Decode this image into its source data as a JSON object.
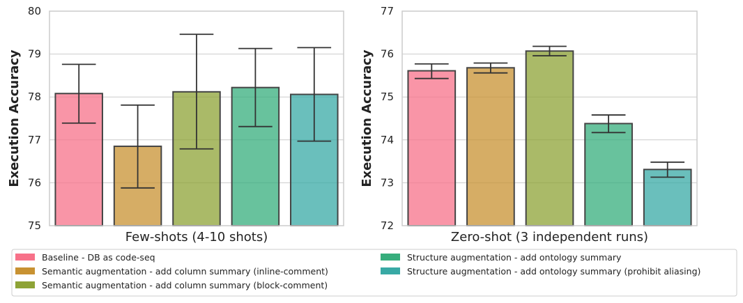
{
  "legend": [
    {
      "label": "Baseline - DB as code-seq",
      "color": "#f77189"
    },
    {
      "label": "Semantic augmentation - add column summary (inline-comment)",
      "color": "#c89232"
    },
    {
      "label": "Semantic augmentation - add column summary (block-comment)",
      "color": "#8ea336"
    },
    {
      "label": "Structure augmentation - add ontology summary",
      "color": "#36ad7c"
    },
    {
      "label": "Structure augmentation - add ontology summary (prohibit aliasing)",
      "color": "#38a9a5"
    }
  ],
  "chart_data": [
    {
      "type": "bar",
      "xlabel": "Few-shots (4-10 shots)",
      "ylabel": "Execution Accuracy",
      "ylim": [
        75,
        80
      ],
      "yticks": [
        75,
        76,
        77,
        78,
        79,
        80
      ],
      "grid": true,
      "series": [
        {
          "name": "Baseline - DB as code-seq",
          "value": 78.08,
          "err_low": 77.39,
          "err_high": 78.76
        },
        {
          "name": "Semantic augmentation - add column summary (inline-comment)",
          "value": 76.85,
          "err_low": 75.88,
          "err_high": 77.81
        },
        {
          "name": "Semantic augmentation - add column summary (block-comment)",
          "value": 78.12,
          "err_low": 76.79,
          "err_high": 79.46
        },
        {
          "name": "Structure augmentation - add ontology summary",
          "value": 78.22,
          "err_low": 77.31,
          "err_high": 79.13
        },
        {
          "name": "Structure augmentation - add ontology summary (prohibit aliasing)",
          "value": 78.06,
          "err_low": 76.97,
          "err_high": 79.15
        }
      ]
    },
    {
      "type": "bar",
      "xlabel": "Zero-shot (3 independent runs)",
      "ylabel": "Execution Accuracy",
      "ylim": [
        72,
        77
      ],
      "yticks": [
        72,
        73,
        74,
        75,
        76,
        77
      ],
      "grid": true,
      "series": [
        {
          "name": "Baseline - DB as code-seq",
          "value": 75.61,
          "err_low": 75.43,
          "err_high": 75.77
        },
        {
          "name": "Semantic augmentation - add column summary (inline-comment)",
          "value": 75.68,
          "err_low": 75.56,
          "err_high": 75.79
        },
        {
          "name": "Semantic augmentation - add column summary (block-comment)",
          "value": 76.07,
          "err_low": 75.96,
          "err_high": 76.18
        },
        {
          "name": "Structure augmentation - add ontology summary",
          "value": 74.38,
          "err_low": 74.17,
          "err_high": 74.58
        },
        {
          "name": "Structure augmentation - add ontology summary (prohibit aliasing)",
          "value": 73.31,
          "err_low": 73.13,
          "err_high": 73.48
        }
      ]
    }
  ]
}
